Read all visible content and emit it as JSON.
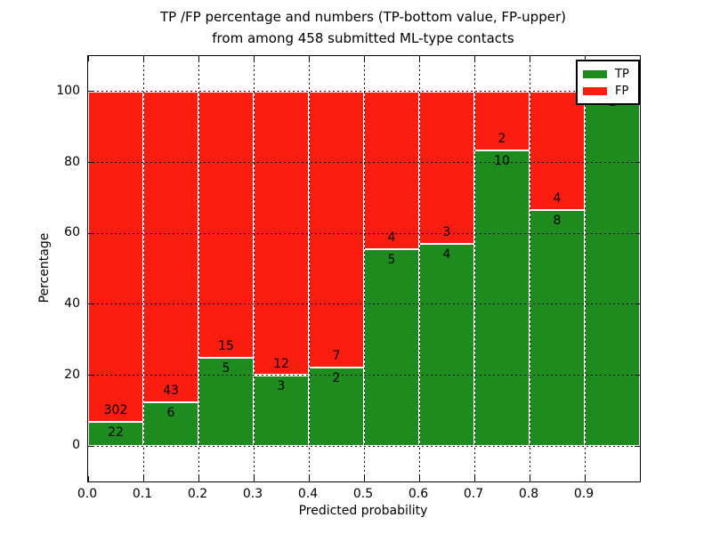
{
  "chart_data": {
    "type": "bar",
    "stacked": true,
    "title_line1": "TP /FP percentage and numbers (TP-bottom value, FP-upper)",
    "title_line2": "from among 458 submitted ML-type contacts",
    "xlabel": "Predicted probability",
    "ylabel": "Percentage",
    "xlim": [
      0.0,
      1.0
    ],
    "ylim": [
      -10,
      110
    ],
    "x_ticks": [
      "0.0",
      "0.1",
      "0.2",
      "0.3",
      "0.4",
      "0.5",
      "0.6",
      "0.7",
      "0.8",
      "0.9"
    ],
    "y_ticks": [
      "0",
      "20",
      "40",
      "60",
      "80",
      "100"
    ],
    "grid": "dotted",
    "legend_position": "upper right",
    "total_contacts": 458,
    "series": [
      {
        "name": "TP",
        "color": "#1e8b1e",
        "values": [
          22,
          6,
          5,
          3,
          2,
          5,
          4,
          10,
          8,
          1
        ]
      },
      {
        "name": "FP",
        "color": "#fb1d10",
        "values": [
          302,
          43,
          15,
          12,
          7,
          4,
          3,
          2,
          4,
          0
        ]
      }
    ],
    "bins": [
      {
        "x0": 0.0,
        "x1": 0.1,
        "tp": 22,
        "fp": 302,
        "tp_pct": 6.79,
        "tp_label": "22",
        "fp_label": "302"
      },
      {
        "x0": 0.1,
        "x1": 0.2,
        "tp": 6,
        "fp": 43,
        "tp_pct": 12.24,
        "tp_label": "6",
        "fp_label": "43"
      },
      {
        "x0": 0.2,
        "x1": 0.3,
        "tp": 5,
        "fp": 15,
        "tp_pct": 25.0,
        "tp_label": "5",
        "fp_label": "15"
      },
      {
        "x0": 0.3,
        "x1": 0.4,
        "tp": 3,
        "fp": 12,
        "tp_pct": 20.0,
        "tp_label": "3",
        "fp_label": "12"
      },
      {
        "x0": 0.4,
        "x1": 0.5,
        "tp": 2,
        "fp": 7,
        "tp_pct": 22.22,
        "tp_label": "2",
        "fp_label": "7"
      },
      {
        "x0": 0.5,
        "x1": 0.6,
        "tp": 5,
        "fp": 4,
        "tp_pct": 55.56,
        "tp_label": "5",
        "fp_label": "4"
      },
      {
        "x0": 0.6,
        "x1": 0.7,
        "tp": 4,
        "fp": 3,
        "tp_pct": 57.14,
        "tp_label": "4",
        "fp_label": "3"
      },
      {
        "x0": 0.7,
        "x1": 0.8,
        "tp": 10,
        "fp": 2,
        "tp_pct": 83.33,
        "tp_label": "10",
        "fp_label": "2"
      },
      {
        "x0": 0.8,
        "x1": 0.9,
        "tp": 8,
        "fp": 4,
        "tp_pct": 66.67,
        "tp_label": "8",
        "fp_label": "4"
      },
      {
        "x0": 0.9,
        "x1": 1.0,
        "tp": 1,
        "fp": 0,
        "tp_pct": 100.0,
        "tp_label": "1",
        "fp_label": ""
      }
    ]
  },
  "legend": {
    "tp_label": "TP",
    "fp_label": "FP"
  },
  "colors": {
    "tp": "#1e8b1e",
    "fp": "#fb1d10",
    "text": "#000000",
    "grid": "#000000",
    "background": "#ffffff"
  }
}
